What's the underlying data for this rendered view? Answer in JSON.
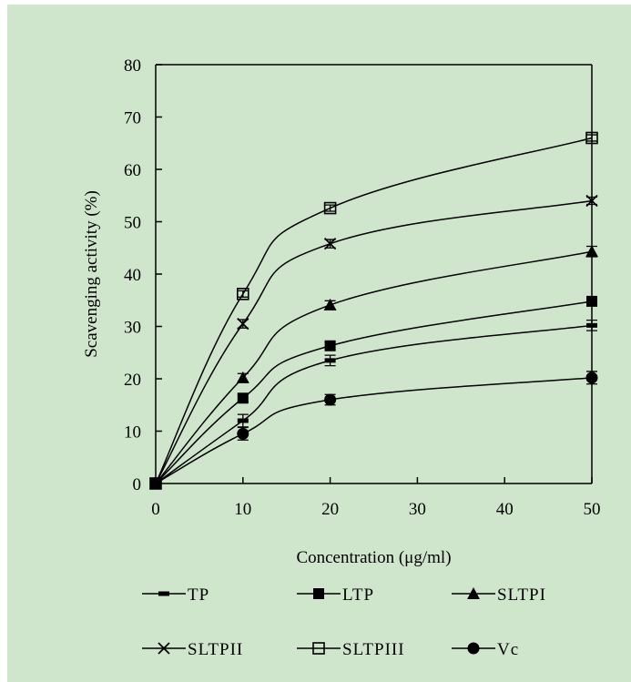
{
  "chart_data": {
    "type": "line",
    "title": "",
    "xlabel": "Concentration (μg/ml)",
    "ylabel": "Scavenging activity (%)",
    "xlim": [
      0,
      50
    ],
    "ylim": [
      0,
      80
    ],
    "xticks": [
      0,
      10,
      20,
      30,
      40,
      50
    ],
    "yticks": [
      0,
      10,
      20,
      30,
      40,
      50,
      60,
      70,
      80
    ],
    "grid": false,
    "legend_position": "bottom",
    "x": [
      0,
      10,
      20,
      50
    ],
    "series": [
      {
        "name": "TP",
        "marker": "dash",
        "values": [
          0,
          12,
          23.5,
          30.2
        ],
        "errors": [
          0,
          1.2,
          1.0,
          1.0
        ]
      },
      {
        "name": "LTP",
        "marker": "square-filled",
        "values": [
          0,
          16.3,
          26.3,
          34.8
        ],
        "errors": [
          0,
          0.7,
          0.7,
          0.7
        ]
      },
      {
        "name": "SLTPI",
        "marker": "triangle-filled",
        "values": [
          0,
          20.2,
          34.1,
          44.3
        ],
        "errors": [
          0,
          0.8,
          0.8,
          1.0
        ]
      },
      {
        "name": "SLTPII",
        "marker": "x",
        "values": [
          0,
          30.5,
          45.8,
          54.0
        ],
        "errors": [
          0,
          0.8,
          0.8,
          0.7
        ]
      },
      {
        "name": "SLTPIII",
        "marker": "square-open",
        "values": [
          0,
          36.2,
          52.6,
          66.0
        ],
        "errors": [
          0,
          0.6,
          0.6,
          0.6
        ]
      },
      {
        "name": "Vc",
        "marker": "circle-filled",
        "values": [
          0,
          9.5,
          16.0,
          20.2
        ],
        "errors": [
          0,
          1.2,
          1.0,
          1.2
        ]
      }
    ]
  }
}
